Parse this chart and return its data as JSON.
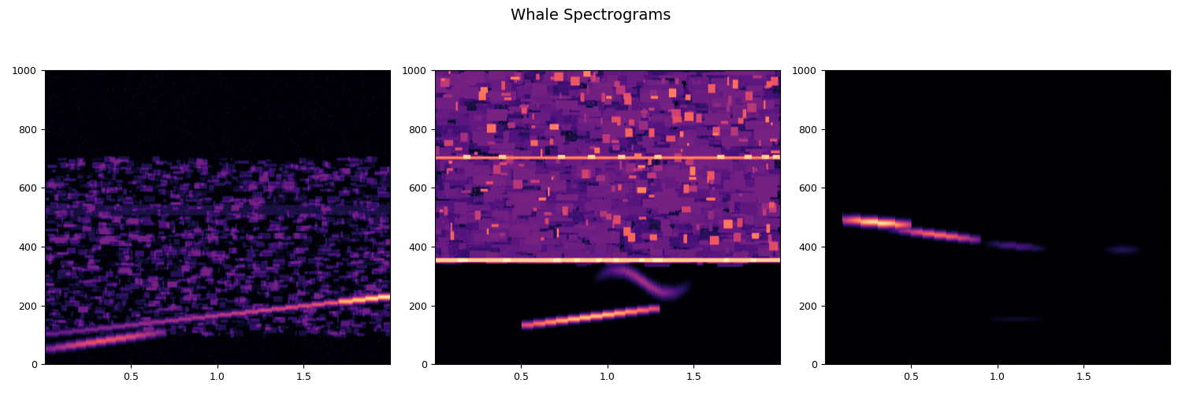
{
  "title": "Whale Spectrograms",
  "title_fontsize": 14,
  "n_plots": 3,
  "figsize": [
    15.0,
    5.0
  ],
  "dpi": 100,
  "xlim": [
    0,
    2.0
  ],
  "ylim": [
    0,
    1000
  ],
  "xticks": [
    0.5,
    1.0,
    1.5
  ],
  "yticks": [
    0,
    200,
    400,
    600,
    800,
    1000
  ],
  "colormap": "magma",
  "seed": 7,
  "vmax": 1.0
}
